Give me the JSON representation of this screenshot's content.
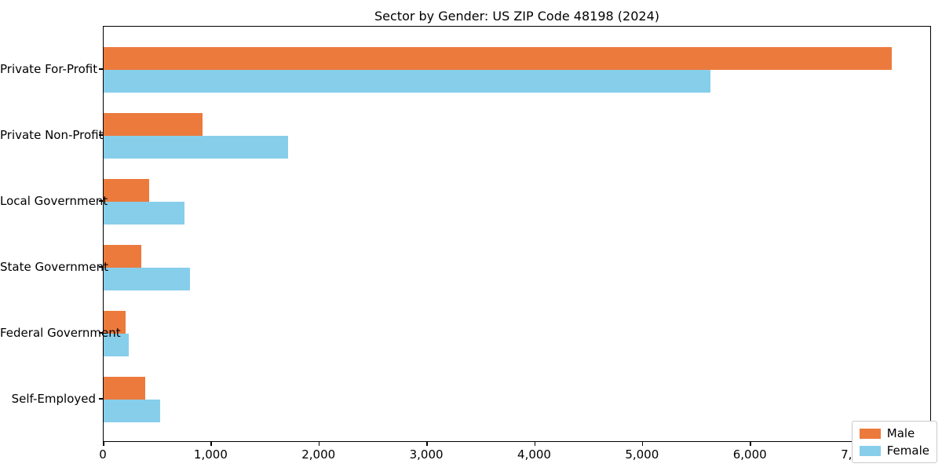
{
  "figure": {
    "background": "#ffffff",
    "axis_color": "#000000",
    "legend_border_color": "#c9c9c9"
  },
  "chart_data": {
    "type": "bar",
    "orientation": "horizontal",
    "title": "Sector by Gender: US ZIP Code 48198 (2024)",
    "xlabel": "",
    "ylabel": "",
    "grid": false,
    "legend_position": "lower right",
    "categories": [
      "Private For-Profit",
      "Private Non-Profit",
      "Local Government",
      "State Government",
      "Federal Government",
      "Self-Employed"
    ],
    "series": [
      {
        "name": "Male",
        "color": "#EC7A3D",
        "values": [
          7310,
          920,
          425,
          350,
          205,
          385
        ]
      },
      {
        "name": "Female",
        "color": "#87CEEB",
        "values": [
          5630,
          1710,
          750,
          800,
          235,
          525
        ]
      }
    ],
    "xlim": [
      0,
      7680
    ],
    "x_tick_values": [
      0,
      1000,
      2000,
      3000,
      4000,
      5000,
      6000,
      7000
    ],
    "x_tick_labels": [
      "0",
      "1,000",
      "2,000",
      "3,000",
      "4,000",
      "5,000",
      "6,000",
      "7,000"
    ]
  }
}
